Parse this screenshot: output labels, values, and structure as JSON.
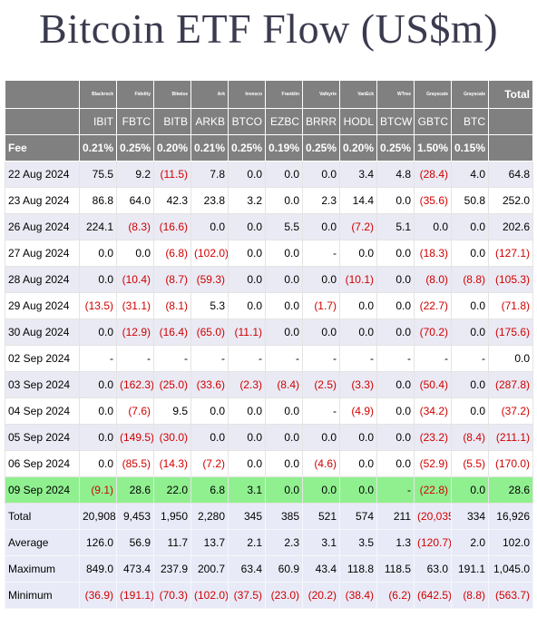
{
  "title": "Bitcoin ETF Flow (US$m)",
  "issuers": [
    "Blackrock",
    "Fidelity",
    "Bitwise",
    "Ark",
    "Invesco",
    "Franklin",
    "Valkyrie",
    "VanEck",
    "WTree",
    "Grayscale",
    "Grayscale"
  ],
  "total_header": "Total",
  "tickers": [
    "IBIT",
    "FBTC",
    "BITB",
    "ARKB",
    "BTCO",
    "EZBC",
    "BRRR",
    "HODL",
    "BTCW",
    "GBTC",
    "BTC"
  ],
  "fee_label": "Fee",
  "fees": [
    "0.21%",
    "0.25%",
    "0.20%",
    "0.21%",
    "0.25%",
    "0.19%",
    "0.25%",
    "0.20%",
    "0.25%",
    "1.50%",
    "0.15%"
  ],
  "rows": [
    {
      "date": "22 Aug 2024",
      "values": [
        "75.5",
        "9.2",
        "(11.5)",
        "7.8",
        "0.0",
        "0.0",
        "0.0",
        "3.4",
        "4.8",
        "(28.4)",
        "4.0"
      ],
      "total": "64.8"
    },
    {
      "date": "23 Aug 2024",
      "values": [
        "86.8",
        "64.0",
        "42.3",
        "23.8",
        "3.2",
        "0.0",
        "2.3",
        "14.4",
        "0.0",
        "(35.6)",
        "50.8"
      ],
      "total": "252.0"
    },
    {
      "date": "26 Aug 2024",
      "values": [
        "224.1",
        "(8.3)",
        "(16.6)",
        "0.0",
        "0.0",
        "5.5",
        "0.0",
        "(7.2)",
        "5.1",
        "0.0",
        "0.0"
      ],
      "total": "202.6"
    },
    {
      "date": "27 Aug 2024",
      "values": [
        "0.0",
        "0.0",
        "(6.8)",
        "(102.0)",
        "0.0",
        "0.0",
        "-",
        "0.0",
        "0.0",
        "(18.3)",
        "0.0"
      ],
      "total": "(127.1)"
    },
    {
      "date": "28 Aug 2024",
      "values": [
        "0.0",
        "(10.4)",
        "(8.7)",
        "(59.3)",
        "0.0",
        "0.0",
        "0.0",
        "(10.1)",
        "0.0",
        "(8.0)",
        "(8.8)"
      ],
      "total": "(105.3)"
    },
    {
      "date": "29 Aug 2024",
      "values": [
        "(13.5)",
        "(31.1)",
        "(8.1)",
        "5.3",
        "0.0",
        "0.0",
        "(1.7)",
        "0.0",
        "0.0",
        "(22.7)",
        "0.0"
      ],
      "total": "(71.8)"
    },
    {
      "date": "30 Aug 2024",
      "values": [
        "0.0",
        "(12.9)",
        "(16.4)",
        "(65.0)",
        "(11.1)",
        "0.0",
        "0.0",
        "0.0",
        "0.0",
        "(70.2)",
        "0.0"
      ],
      "total": "(175.6)"
    },
    {
      "date": "02 Sep 2024",
      "values": [
        "-",
        "-",
        "-",
        "-",
        "-",
        "-",
        "-",
        "-",
        "-",
        "-",
        "-"
      ],
      "total": "0.0"
    },
    {
      "date": "03 Sep 2024",
      "values": [
        "0.0",
        "(162.3)",
        "(25.0)",
        "(33.6)",
        "(2.3)",
        "(8.4)",
        "(2.5)",
        "(3.3)",
        "0.0",
        "(50.4)",
        "0.0"
      ],
      "total": "(287.8)"
    },
    {
      "date": "04 Sep 2024",
      "values": [
        "0.0",
        "(7.6)",
        "9.5",
        "0.0",
        "0.0",
        "0.0",
        "-",
        "(4.9)",
        "0.0",
        "(34.2)",
        "0.0"
      ],
      "total": "(37.2)"
    },
    {
      "date": "05 Sep 2024",
      "values": [
        "0.0",
        "(149.5)",
        "(30.0)",
        "0.0",
        "0.0",
        "0.0",
        "0.0",
        "0.0",
        "0.0",
        "(23.2)",
        "(8.4)"
      ],
      "total": "(211.1)"
    },
    {
      "date": "06 Sep 2024",
      "values": [
        "0.0",
        "(85.5)",
        "(14.3)",
        "(7.2)",
        "0.0",
        "0.0",
        "(4.6)",
        "0.0",
        "0.0",
        "(52.9)",
        "(5.5)"
      ],
      "total": "(170.0)"
    },
    {
      "date": "09 Sep 2024",
      "values": [
        "(9.1)",
        "28.6",
        "22.0",
        "6.8",
        "3.1",
        "0.0",
        "0.0",
        "0.0",
        "-",
        "(22.8)",
        "0.0"
      ],
      "total": "28.6",
      "highlight": true
    }
  ],
  "stats": [
    {
      "label": "Total",
      "values": [
        "20,908",
        "9,453",
        "1,950",
        "2,280",
        "345",
        "385",
        "521",
        "574",
        "211",
        "(20,035)",
        "334"
      ],
      "total": "16,926"
    },
    {
      "label": "Average",
      "values": [
        "126.0",
        "56.9",
        "11.7",
        "13.7",
        "2.1",
        "2.3",
        "3.1",
        "3.5",
        "1.3",
        "(120.7)",
        "2.0"
      ],
      "total": "102.0"
    },
    {
      "label": "Maximum",
      "values": [
        "849.0",
        "473.4",
        "237.9",
        "200.7",
        "63.4",
        "60.9",
        "43.4",
        "118.8",
        "118.5",
        "63.0",
        "191.1"
      ],
      "total": "1,045.0"
    },
    {
      "label": "Minimum",
      "values": [
        "(36.9)",
        "(191.1)",
        "(70.3)",
        "(102.0)",
        "(37.5)",
        "(23.0)",
        "(20.2)",
        "(38.4)",
        "(6.2)",
        "(642.5)",
        "(8.8)"
      ],
      "total": "(563.7)"
    }
  ],
  "colors": {
    "header_bg": "#808080",
    "negative": "#d00000",
    "highlight": "#90f090",
    "stripe": "#eaeaf4",
    "stats_bg": "#e8ebf7",
    "title": "#3b3b4f"
  }
}
